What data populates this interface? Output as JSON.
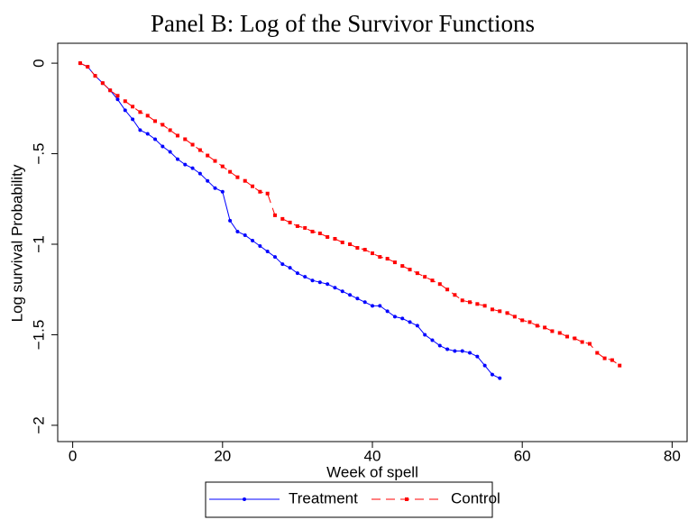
{
  "chart_data": {
    "type": "line",
    "title": "Panel B: Log of the Survivor Functions",
    "x_label": "Week of spell",
    "y_label": "Log survival Probability",
    "xlim": [
      -2,
      82
    ],
    "ylim": [
      -2.09,
      0.11
    ],
    "xticks": [
      0,
      20,
      40,
      60,
      80
    ],
    "yticks": [
      {
        "value": -2,
        "label": "−2"
      },
      {
        "value": -1.5,
        "label": "−1.5"
      },
      {
        "value": -1,
        "label": "−1"
      },
      {
        "value": -0.5,
        "label": "−.5"
      },
      0
    ],
    "legend": "bottom",
    "series": [
      {
        "name": "Treatment",
        "color": "#0000ff",
        "dash": false,
        "marker": "circle",
        "x": [
          1,
          2,
          3,
          4,
          5,
          6,
          7,
          8,
          9,
          10,
          11,
          12,
          13,
          14,
          15,
          16,
          17,
          18,
          19,
          20,
          21,
          22,
          23,
          24,
          25,
          26,
          27,
          28,
          29,
          30,
          31,
          32,
          33,
          34,
          35,
          36,
          37,
          38,
          39,
          40,
          41,
          42,
          43,
          44,
          45,
          46,
          47,
          48,
          49,
          50,
          51,
          52,
          53,
          54,
          55,
          56,
          57
        ],
        "values": [
          0,
          -0.02,
          -0.07,
          -0.11,
          -0.15,
          -0.2,
          -0.26,
          -0.31,
          -0.37,
          -0.39,
          -0.42,
          -0.46,
          -0.49,
          -0.53,
          -0.56,
          -0.58,
          -0.61,
          -0.65,
          -0.69,
          -0.71,
          -0.87,
          -0.93,
          -0.95,
          -0.98,
          -1.01,
          -1.04,
          -1.07,
          -1.11,
          -1.13,
          -1.16,
          -1.18,
          -1.2,
          -1.21,
          -1.22,
          -1.24,
          -1.26,
          -1.28,
          -1.3,
          -1.32,
          -1.34,
          -1.34,
          -1.37,
          -1.4,
          -1.41,
          -1.43,
          -1.45,
          -1.5,
          -1.53,
          -1.56,
          -1.58,
          -1.59,
          -1.59,
          -1.6,
          -1.62,
          -1.67,
          -1.72,
          -1.74
        ]
      },
      {
        "name": "Control",
        "color": "#ff0000",
        "dash": true,
        "marker": "square",
        "x": [
          1,
          2,
          3,
          4,
          5,
          6,
          7,
          8,
          9,
          10,
          11,
          12,
          13,
          14,
          15,
          16,
          17,
          18,
          19,
          20,
          21,
          22,
          23,
          24,
          25,
          26,
          27,
          28,
          29,
          30,
          31,
          32,
          33,
          34,
          35,
          36,
          37,
          38,
          39,
          40,
          41,
          42,
          43,
          44,
          45,
          46,
          47,
          48,
          49,
          50,
          51,
          52,
          53,
          54,
          55,
          56,
          57,
          58,
          59,
          60,
          61,
          62,
          63,
          64,
          65,
          66,
          67,
          68,
          69,
          70,
          71,
          72,
          73
        ],
        "values": [
          0,
          -0.02,
          -0.07,
          -0.11,
          -0.15,
          -0.18,
          -0.21,
          -0.24,
          -0.27,
          -0.29,
          -0.32,
          -0.34,
          -0.37,
          -0.4,
          -0.42,
          -0.45,
          -0.48,
          -0.51,
          -0.54,
          -0.57,
          -0.6,
          -0.63,
          -0.65,
          -0.68,
          -0.71,
          -0.72,
          -0.84,
          -0.86,
          -0.88,
          -0.9,
          -0.91,
          -0.93,
          -0.94,
          -0.96,
          -0.97,
          -0.99,
          -1.0,
          -1.02,
          -1.03,
          -1.05,
          -1.07,
          -1.08,
          -1.1,
          -1.12,
          -1.14,
          -1.16,
          -1.18,
          -1.2,
          -1.22,
          -1.25,
          -1.28,
          -1.31,
          -1.32,
          -1.33,
          -1.34,
          -1.36,
          -1.37,
          -1.38,
          -1.4,
          -1.42,
          -1.43,
          -1.45,
          -1.46,
          -1.48,
          -1.49,
          -1.51,
          -1.52,
          -1.54,
          -1.55,
          -1.6,
          -1.63,
          -1.64,
          -1.67
        ]
      }
    ]
  }
}
